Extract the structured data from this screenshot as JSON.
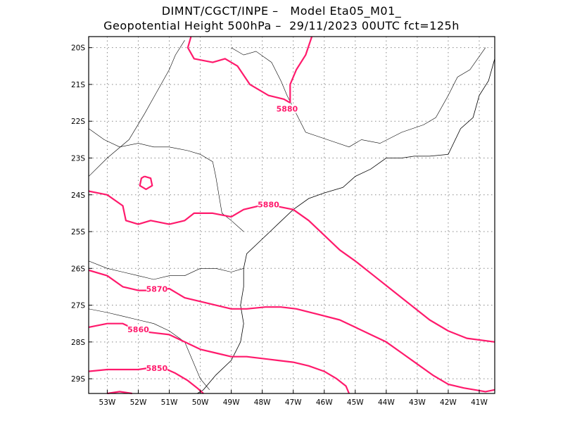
{
  "title_line1": "DIMNT/CGCT/INPE –   Model Eta05_M01_",
  "title_line2": "Geopotential Height 500hPa –  29/11/2023 00UTC fct=125h",
  "colors": {
    "contour": "#ff1a6c",
    "coast": "#000000",
    "grid": "#888888",
    "frame": "#000000"
  },
  "map": {
    "lon_range": [
      -53.6,
      -40.5
    ],
    "lat_range": [
      -29.4,
      -19.7
    ],
    "lon_ticks": [
      {
        "value": -53,
        "label": "53W"
      },
      {
        "value": -52,
        "label": "52W"
      },
      {
        "value": -51,
        "label": "51W"
      },
      {
        "value": -50,
        "label": "50W"
      },
      {
        "value": -49,
        "label": "49W"
      },
      {
        "value": -48,
        "label": "48W"
      },
      {
        "value": -47,
        "label": "47W"
      },
      {
        "value": -46,
        "label": "46W"
      },
      {
        "value": -45,
        "label": "45W"
      },
      {
        "value": -44,
        "label": "44W"
      },
      {
        "value": -43,
        "label": "43W"
      },
      {
        "value": -42,
        "label": "42W"
      },
      {
        "value": -41,
        "label": "41W"
      }
    ],
    "lat_ticks": [
      {
        "value": -20,
        "label": "20S"
      },
      {
        "value": -21,
        "label": "21S"
      },
      {
        "value": -22,
        "label": "22S"
      },
      {
        "value": -23,
        "label": "23S"
      },
      {
        "value": -24,
        "label": "24S"
      },
      {
        "value": -25,
        "label": "25S"
      },
      {
        "value": -26,
        "label": "26S"
      },
      {
        "value": -27,
        "label": "27S"
      },
      {
        "value": -28,
        "label": "28S"
      },
      {
        "value": -29,
        "label": "29S"
      }
    ],
    "contours": [
      {
        "value": 5880,
        "label": "5880",
        "label_at": [
          -47.2,
          -21.7
        ],
        "points": [
          [
            -50.3,
            -19.7
          ],
          [
            -50.4,
            -20.0
          ],
          [
            -50.2,
            -20.3
          ],
          [
            -49.6,
            -20.4
          ],
          [
            -49.2,
            -20.3
          ],
          [
            -48.8,
            -20.5
          ],
          [
            -48.4,
            -21.0
          ],
          [
            -47.8,
            -21.3
          ],
          [
            -47.3,
            -21.4
          ],
          [
            -47.1,
            -21.5
          ]
        ]
      },
      {
        "value": 5880,
        "label": "",
        "label_at": null,
        "points": [
          [
            -47.1,
            -21.5
          ],
          [
            -47.1,
            -21.0
          ],
          [
            -46.9,
            -20.6
          ],
          [
            -46.6,
            -20.2
          ],
          [
            -46.4,
            -19.7
          ]
        ]
      },
      {
        "value": 5880,
        "label": "5880",
        "label_at": [
          -47.8,
          -24.3
        ],
        "points": [
          [
            -53.6,
            -23.9
          ],
          [
            -53.0,
            -24.0
          ],
          [
            -52.5,
            -24.3
          ],
          [
            -52.4,
            -24.7
          ],
          [
            -52.0,
            -24.8
          ],
          [
            -51.6,
            -24.7
          ],
          [
            -51.0,
            -24.8
          ],
          [
            -50.5,
            -24.7
          ],
          [
            -50.2,
            -24.5
          ],
          [
            -49.6,
            -24.5
          ],
          [
            -49.0,
            -24.6
          ],
          [
            -48.6,
            -24.4
          ],
          [
            -48.1,
            -24.3
          ],
          [
            -47.6,
            -24.3
          ],
          [
            -47.0,
            -24.4
          ],
          [
            -46.5,
            -24.7
          ],
          [
            -46.0,
            -25.1
          ],
          [
            -45.5,
            -25.5
          ],
          [
            -45.0,
            -25.8
          ],
          [
            -44.4,
            -26.2
          ],
          [
            -43.8,
            -26.6
          ],
          [
            -43.2,
            -27.0
          ],
          [
            -42.6,
            -27.4
          ],
          [
            -42.0,
            -27.7
          ],
          [
            -41.4,
            -27.9
          ],
          [
            -40.5,
            -28.0
          ]
        ]
      },
      {
        "value": 5880,
        "label": "",
        "label_at": null,
        "points": [
          [
            -51.8,
            -23.5
          ],
          [
            -51.6,
            -23.55
          ],
          [
            -51.55,
            -23.75
          ],
          [
            -51.75,
            -23.85
          ],
          [
            -51.95,
            -23.75
          ],
          [
            -51.9,
            -23.55
          ],
          [
            -51.8,
            -23.5
          ]
        ]
      },
      {
        "value": 5870,
        "label": "5870",
        "label_at": [
          -51.4,
          -26.6
        ],
        "points": [
          [
            -53.6,
            -26.05
          ],
          [
            -53.0,
            -26.2
          ],
          [
            -52.5,
            -26.5
          ],
          [
            -52.0,
            -26.6
          ],
          [
            -51.4,
            -26.6
          ],
          [
            -51.0,
            -26.55
          ],
          [
            -50.5,
            -26.8
          ],
          [
            -50.0,
            -26.9
          ],
          [
            -49.5,
            -27.0
          ],
          [
            -49.0,
            -27.1
          ],
          [
            -48.5,
            -27.1
          ],
          [
            -47.9,
            -27.05
          ],
          [
            -47.4,
            -27.05
          ],
          [
            -46.9,
            -27.1
          ],
          [
            -46.2,
            -27.25
          ],
          [
            -45.5,
            -27.4
          ],
          [
            -45.0,
            -27.6
          ],
          [
            -44.5,
            -27.8
          ],
          [
            -44.0,
            -28.0
          ],
          [
            -43.5,
            -28.3
          ],
          [
            -43.0,
            -28.6
          ],
          [
            -42.5,
            -28.9
          ],
          [
            -42.0,
            -29.15
          ],
          [
            -41.5,
            -29.25
          ],
          [
            -40.8,
            -29.35
          ],
          [
            -40.5,
            -29.3
          ]
        ]
      },
      {
        "value": 5860,
        "label": "5860",
        "label_at": [
          -52.0,
          -27.7
        ],
        "points": [
          [
            -53.6,
            -27.6
          ],
          [
            -53.0,
            -27.5
          ],
          [
            -52.5,
            -27.5
          ],
          [
            -52.0,
            -27.7
          ],
          [
            -51.5,
            -27.75
          ],
          [
            -51.0,
            -27.8
          ],
          [
            -50.5,
            -28.0
          ],
          [
            -50.0,
            -28.2
          ],
          [
            -49.5,
            -28.3
          ],
          [
            -49.0,
            -28.4
          ],
          [
            -48.5,
            -28.4
          ],
          [
            -48.0,
            -28.45
          ],
          [
            -47.5,
            -28.5
          ],
          [
            -47.0,
            -28.55
          ],
          [
            -46.5,
            -28.65
          ],
          [
            -46.0,
            -28.8
          ],
          [
            -45.6,
            -29.0
          ],
          [
            -45.3,
            -29.2
          ],
          [
            -45.2,
            -29.4
          ]
        ]
      },
      {
        "value": 5850,
        "label": "5850",
        "label_at": [
          -51.4,
          -28.75
        ],
        "points": [
          [
            -53.6,
            -28.8
          ],
          [
            -53.0,
            -28.75
          ],
          [
            -52.4,
            -28.75
          ],
          [
            -52.0,
            -28.75
          ],
          [
            -51.6,
            -28.7
          ],
          [
            -51.2,
            -28.7
          ],
          [
            -50.8,
            -28.85
          ],
          [
            -50.4,
            -29.05
          ],
          [
            -50.1,
            -29.25
          ],
          [
            -49.9,
            -29.4
          ]
        ]
      },
      {
        "value": 5850,
        "label": "",
        "label_at": null,
        "points": [
          [
            -53.0,
            -29.4
          ],
          [
            -52.6,
            -29.35
          ],
          [
            -52.2,
            -29.4
          ]
        ]
      }
    ],
    "coastline": [
      [
        -40.5,
        -20.3
      ],
      [
        -40.7,
        -20.9
      ],
      [
        -41.0,
        -21.3
      ],
      [
        -41.2,
        -21.9
      ],
      [
        -41.6,
        -22.2
      ],
      [
        -42.0,
        -22.9
      ],
      [
        -42.6,
        -22.95
      ],
      [
        -43.1,
        -22.95
      ],
      [
        -43.5,
        -23.0
      ],
      [
        -44.0,
        -23.0
      ],
      [
        -44.5,
        -23.3
      ],
      [
        -45.0,
        -23.5
      ],
      [
        -45.4,
        -23.8
      ],
      [
        -46.0,
        -23.95
      ],
      [
        -46.5,
        -24.1
      ],
      [
        -47.0,
        -24.4
      ],
      [
        -47.5,
        -24.8
      ],
      [
        -48.0,
        -25.2
      ],
      [
        -48.5,
        -25.6
      ],
      [
        -48.6,
        -26.0
      ],
      [
        -48.6,
        -26.5
      ],
      [
        -48.7,
        -27.0
      ],
      [
        -48.6,
        -27.5
      ],
      [
        -48.7,
        -28.0
      ],
      [
        -49.0,
        -28.5
      ],
      [
        -49.5,
        -28.9
      ],
      [
        -49.9,
        -29.3
      ],
      [
        -50.1,
        -29.4
      ]
    ],
    "borders": [
      [
        [
          -53.6,
          -22.2
        ],
        [
          -53.1,
          -22.5
        ],
        [
          -52.6,
          -22.7
        ],
        [
          -52.0,
          -22.6
        ],
        [
          -51.5,
          -22.7
        ],
        [
          -51.0,
          -22.7
        ],
        [
          -50.4,
          -22.8
        ],
        [
          -50.0,
          -22.9
        ],
        [
          -49.6,
          -23.1
        ],
        [
          -49.5,
          -23.5
        ],
        [
          -49.4,
          -24.0
        ],
        [
          -49.3,
          -24.5
        ],
        [
          -49.0,
          -24.7
        ],
        [
          -48.6,
          -25.0
        ]
      ],
      [
        [
          -53.6,
          -25.8
        ],
        [
          -53.0,
          -26.0
        ],
        [
          -52.5,
          -26.1
        ],
        [
          -52.0,
          -26.2
        ],
        [
          -51.5,
          -26.3
        ],
        [
          -51.0,
          -26.2
        ],
        [
          -50.5,
          -26.2
        ],
        [
          -50.0,
          -26.0
        ],
        [
          -49.5,
          -26.0
        ],
        [
          -49.0,
          -26.1
        ],
        [
          -48.6,
          -26.0
        ]
      ],
      [
        [
          -53.6,
          -27.1
        ],
        [
          -53.0,
          -27.2
        ],
        [
          -52.5,
          -27.3
        ],
        [
          -52.0,
          -27.4
        ],
        [
          -51.5,
          -27.5
        ],
        [
          -51.0,
          -27.7
        ],
        [
          -50.5,
          -28.0
        ],
        [
          -50.0,
          -29.0
        ],
        [
          -49.7,
          -29.3
        ]
      ],
      [
        [
          -53.6,
          -23.5
        ],
        [
          -53.0,
          -23.0
        ],
        [
          -52.3,
          -22.5
        ],
        [
          -51.8,
          -21.8
        ],
        [
          -51.4,
          -21.2
        ],
        [
          -51.0,
          -20.6
        ],
        [
          -50.8,
          -20.2
        ],
        [
          -50.5,
          -19.8
        ]
      ],
      [
        [
          -49.0,
          -20.0
        ],
        [
          -48.6,
          -20.2
        ],
        [
          -48.2,
          -20.1
        ],
        [
          -47.7,
          -20.4
        ],
        [
          -47.4,
          -20.9
        ],
        [
          -47.2,
          -21.3
        ],
        [
          -46.9,
          -21.8
        ],
        [
          -46.6,
          -22.3
        ],
        [
          -45.9,
          -22.5
        ],
        [
          -45.2,
          -22.7
        ],
        [
          -44.8,
          -22.5
        ],
        [
          -44.2,
          -22.6
        ],
        [
          -43.5,
          -22.3
        ],
        [
          -42.8,
          -22.1
        ],
        [
          -42.4,
          -21.9
        ],
        [
          -42.0,
          -21.3
        ],
        [
          -41.7,
          -20.8
        ],
        [
          -41.3,
          -20.6
        ],
        [
          -40.8,
          -20.0
        ]
      ]
    ]
  }
}
